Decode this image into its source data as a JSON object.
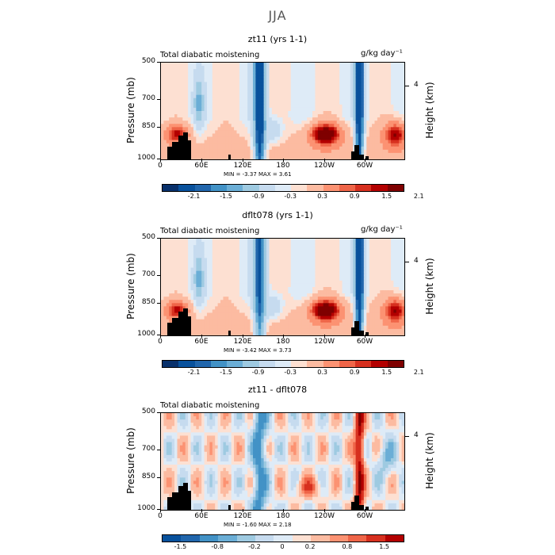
{
  "page_title": "JJA",
  "colors": [
    "#08306b",
    "#08519c",
    "#2166ac",
    "#4292c6",
    "#6baed6",
    "#9ecae1",
    "#c6dbef",
    "#deebf7",
    "#fde0d2",
    "#fcbba1",
    "#fc9272",
    "#ef6548",
    "#d7301f",
    "#b30000",
    "#7f0000"
  ],
  "chart_data": [
    {
      "type": "heatmap",
      "title": "zt11 (yrs 1-1)",
      "left_label": "Total diabatic moistening",
      "units": "g/kg day⁻¹",
      "ylabel": "Pressure (mb)",
      "y2label": "Height (km)",
      "y_ticks": [
        "500",
        "700",
        "850",
        "1000"
      ],
      "y2_ticks": [
        "4"
      ],
      "x_ticks": [
        "0",
        "60E",
        "120E",
        "180",
        "120W",
        "60W"
      ],
      "min_label": "MIN = -3.37",
      "max_label": "MAX = 3.61",
      "cbar_labels": [
        "-2.1",
        "-1.5",
        "-0.9",
        "-0.3",
        "0.3",
        "0.9",
        "1.5",
        "2.1"
      ]
    },
    {
      "type": "heatmap",
      "title": "dflt078 (yrs 1-1)",
      "left_label": "Total diabatic moistening",
      "units": "g/kg day⁻¹",
      "ylabel": "Pressure (mb)",
      "y2label": "Height (km)",
      "y_ticks": [
        "500",
        "700",
        "850",
        "1000"
      ],
      "y2_ticks": [
        "4"
      ],
      "x_ticks": [
        "0",
        "60E",
        "120E",
        "180",
        "120W",
        "60W"
      ],
      "min_label": "MIN = -3.42",
      "max_label": "MAX = 3.73",
      "cbar_labels": [
        "-2.1",
        "-1.5",
        "-0.9",
        "-0.3",
        "0.3",
        "0.9",
        "1.5",
        "2.1"
      ]
    },
    {
      "type": "heatmap",
      "title": "zt11 - dflt078",
      "left_label": "Total diabatic moistening",
      "units": "",
      "ylabel": "Pressure (mb)",
      "y2label": "Height (km)",
      "y_ticks": [
        "500",
        "700",
        "850",
        "1000"
      ],
      "y2_ticks": [
        "4"
      ],
      "x_ticks": [
        "0",
        "60E",
        "120E",
        "180",
        "120W",
        "60W"
      ],
      "min_label": "MIN = -1.60",
      "max_label": "MAX = 2.18",
      "cbar_labels": [
        "-1.5",
        "-0.8",
        "-0.2",
        "0",
        "0.2",
        "0.8",
        "1.5"
      ]
    }
  ]
}
